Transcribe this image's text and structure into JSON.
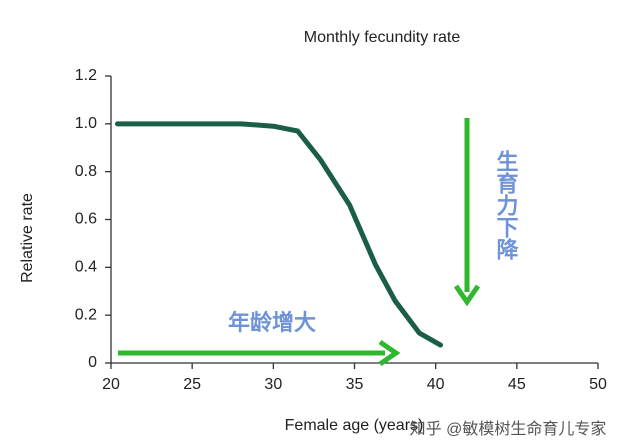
{
  "chart_data": {
    "type": "line",
    "title": "Monthly fecundity rate",
    "xlabel": "Female age (years)",
    "ylabel": "Relative rate",
    "x": [
      20.4,
      24,
      28,
      30,
      31.5,
      32.9,
      34.7,
      36.3,
      37.5,
      39.0,
      40.3
    ],
    "series": [
      {
        "name": "Monthly fecundity rate",
        "color": "#1b5e48",
        "values": [
          1.0,
          1.0,
          1.0,
          0.99,
          0.97,
          0.85,
          0.66,
          0.41,
          0.26,
          0.125,
          0.075
        ]
      }
    ],
    "xlim": [
      20,
      50
    ],
    "xticks": [
      20,
      25,
      30,
      35,
      40,
      45,
      50
    ],
    "ylim": [
      0,
      1.2
    ],
    "yticks": [
      {
        "value": 0,
        "label": "0"
      },
      {
        "value": 0.2,
        "label": "0.2"
      },
      {
        "value": 0.4,
        "label": "0.4"
      },
      {
        "value": 0.6,
        "label": "0.6"
      },
      {
        "value": 0.8,
        "label": "0.8"
      },
      {
        "value": 1.0,
        "label": "1.0"
      },
      {
        "value": 1.2,
        "label": "1.2"
      }
    ],
    "annotations": [
      "年龄增大",
      "生育力下降"
    ],
    "watermark": "知乎 @敏模树生命育儿专家"
  }
}
